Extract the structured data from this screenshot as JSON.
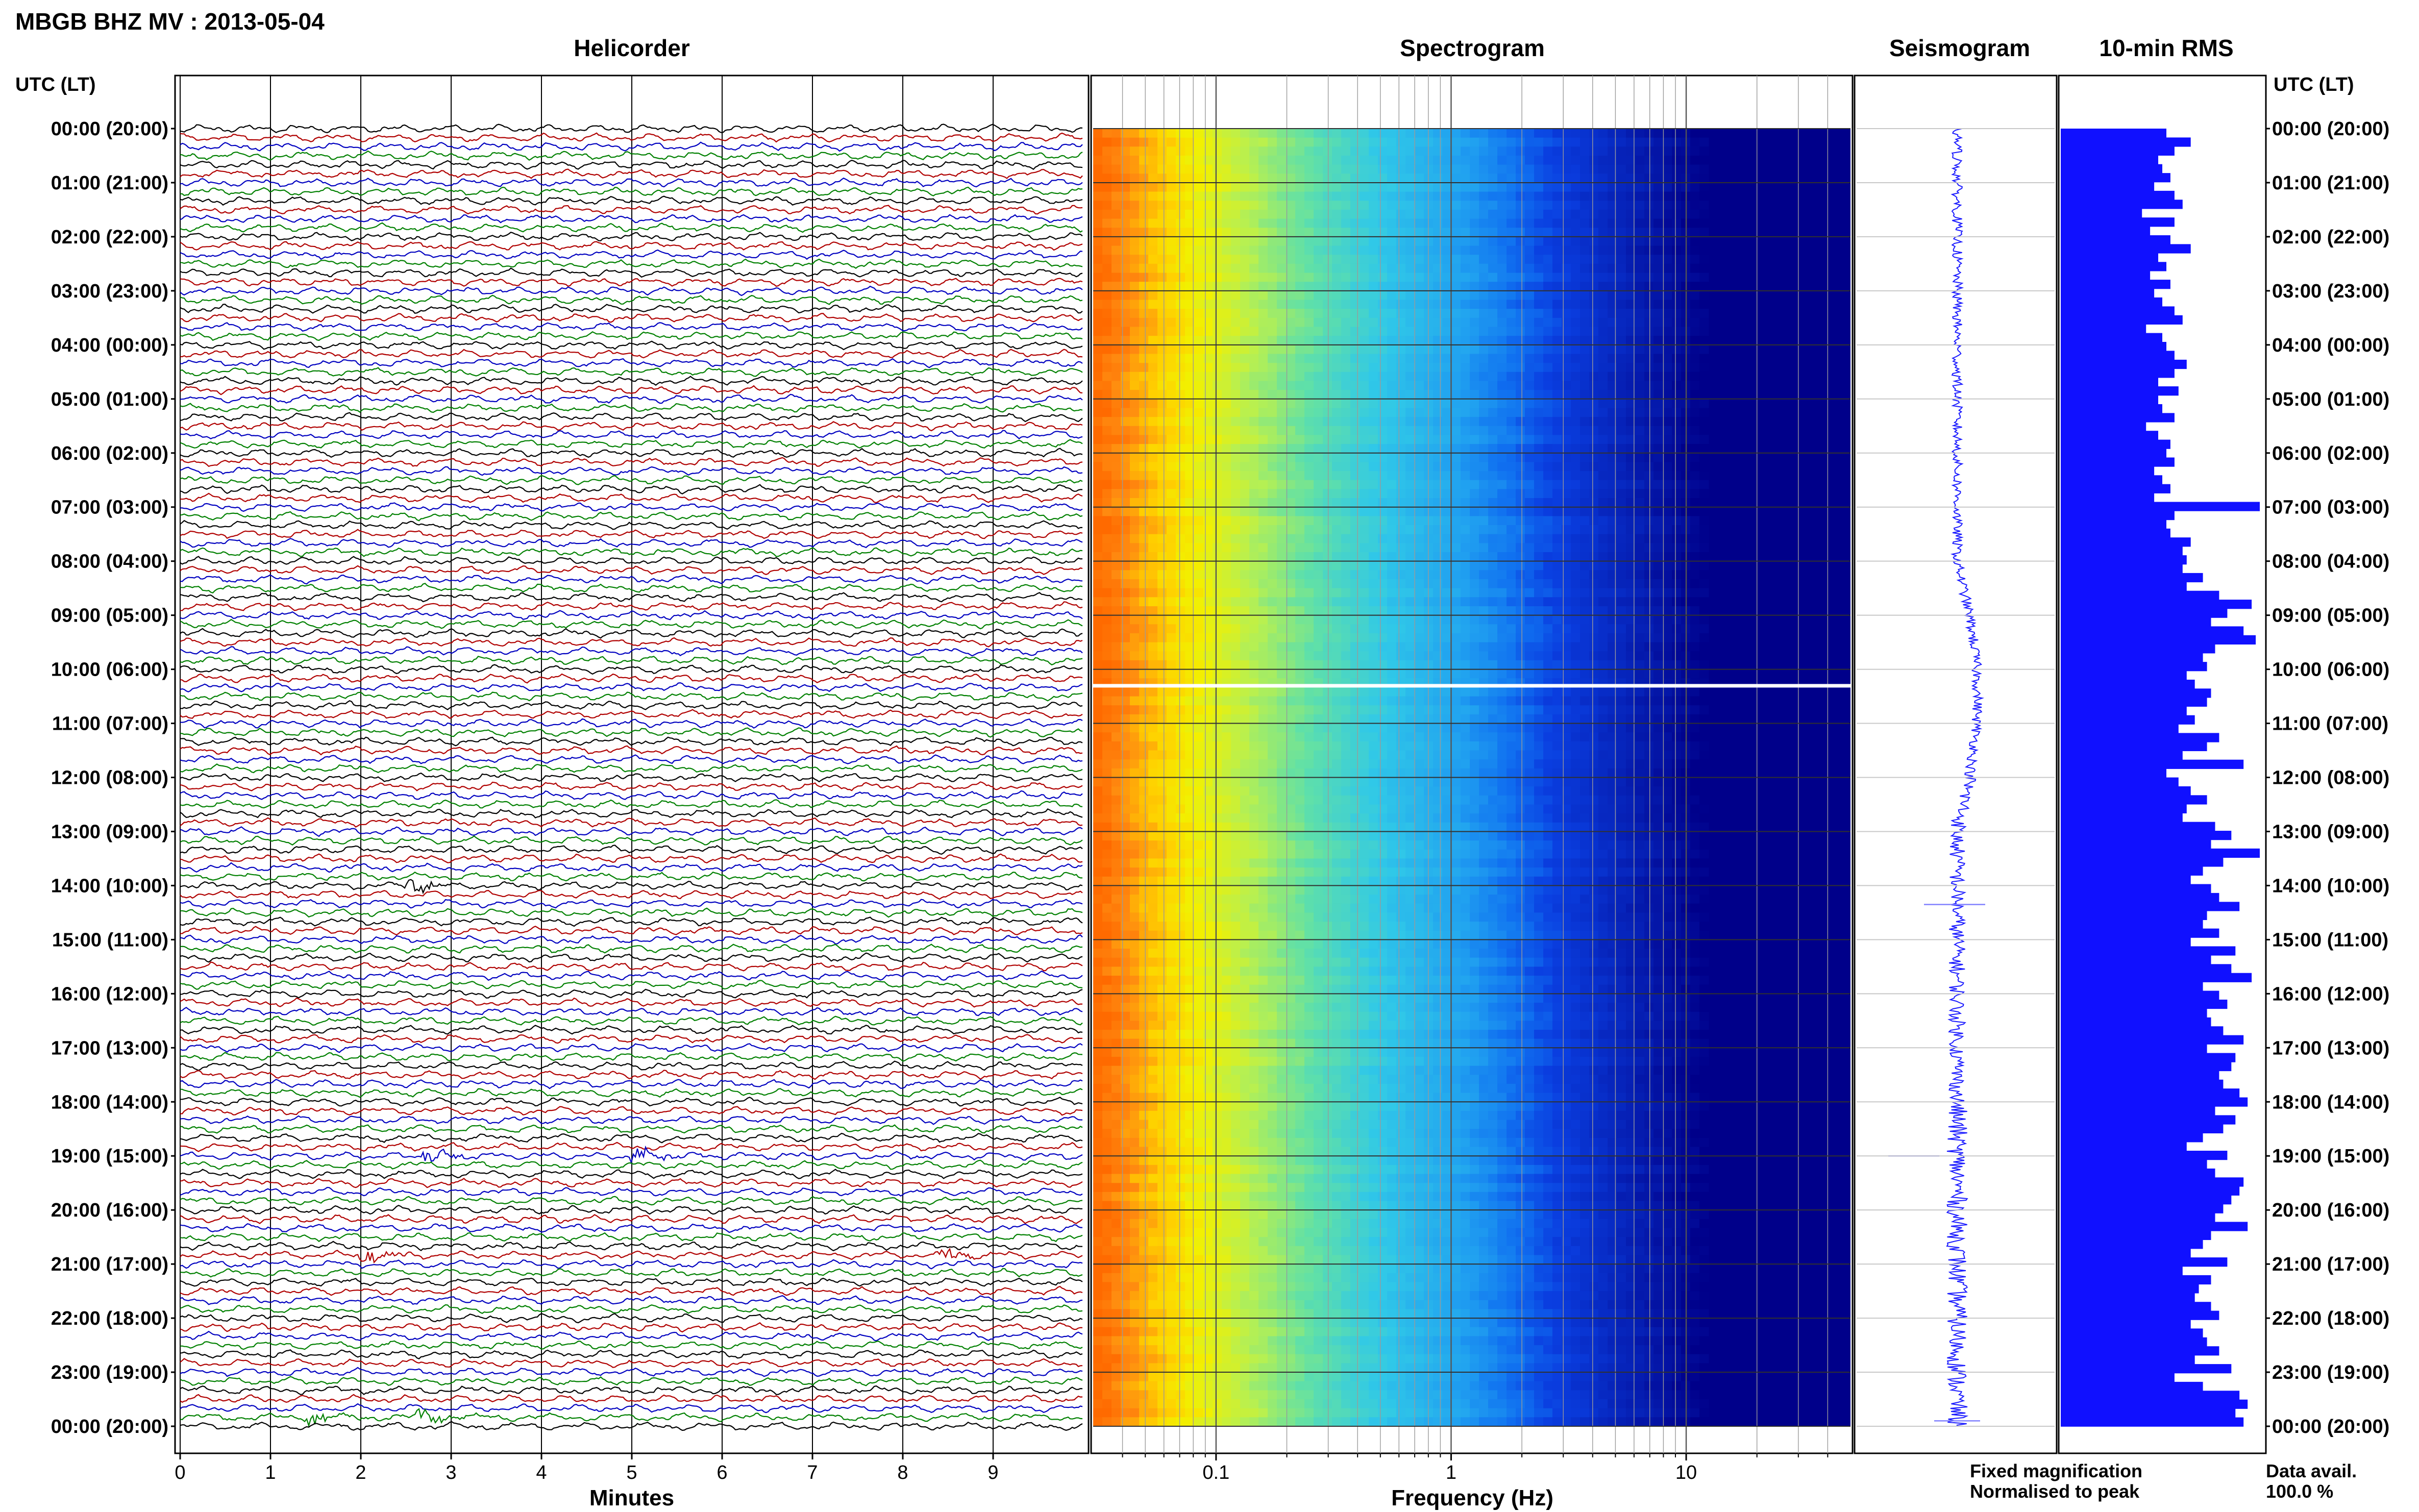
{
  "header": {
    "station_title": "MBGB BHZ MV : 2013-05-04",
    "utc_lt_label": "UTC (LT)"
  },
  "panels": {
    "helicorder_title": "Helicorder",
    "spectrogram_title": "Spectrogram",
    "seismogram_title": "Seismogram",
    "rms_title": "10-min RMS"
  },
  "axes": {
    "helicorder_xlabel": "Minutes",
    "spectrogram_xlabel": "Frequency (Hz)"
  },
  "legend": {
    "fixed_magnification": "Fixed magnification",
    "fixed_magnification_color": "#1f1fff",
    "normalised_to_peak": "Normalised to peak",
    "normalised_to_peak_color": "#ff1f1f",
    "data_avail_label": "Data avail.",
    "data_avail_value": "100.0 %"
  },
  "colors": {
    "trace_cycle": [
      "#000000",
      "#b00000",
      "#0000c0",
      "#008000"
    ],
    "rms_bar": "#1010ff",
    "seismogram": "#1a1aff"
  },
  "chart_data": [
    {
      "type": "line",
      "name": "helicorder",
      "x_unit": "minutes",
      "xlim": [
        0,
        10
      ],
      "x_ticks": [
        "0",
        "1",
        "2",
        "3",
        "4",
        "5",
        "6",
        "7",
        "8",
        "9"
      ],
      "time_labels": [
        "00:00 (20:00)",
        "01:00 (21:00)",
        "02:00 (22:00)",
        "03:00 (23:00)",
        "04:00 (00:00)",
        "05:00 (01:00)",
        "06:00 (02:00)",
        "07:00 (03:00)",
        "08:00 (04:00)",
        "09:00 (05:00)",
        "10:00 (06:00)",
        "11:00 (07:00)",
        "12:00 (08:00)",
        "13:00 (09:00)",
        "14:00 (10:00)",
        "15:00 (11:00)",
        "16:00 (12:00)",
        "17:00 (13:00)",
        "18:00 (14:00)",
        "19:00 (15:00)",
        "20:00 (16:00)",
        "21:00 (17:00)",
        "22:00 (18:00)",
        "23:00 (19:00)",
        "00:00 (20:00)"
      ],
      "events": [
        {
          "row": 143,
          "minute": 2.7
        },
        {
          "row": 114,
          "minute": 2.8
        },
        {
          "row": 114,
          "minute": 5.1
        },
        {
          "row": 125,
          "minute": 2.1
        },
        {
          "row": 125,
          "minute": 8.5
        },
        {
          "row": 143,
          "minute": 1.5
        },
        {
          "row": 84,
          "minute": 2.6
        }
      ]
    },
    {
      "type": "heatmap",
      "name": "spectrogram",
      "x_scale": "log",
      "xlim": [
        0.03,
        50
      ],
      "x_ticks": [
        "0.1",
        "1",
        "10"
      ],
      "x_tick_values": [
        0.1,
        1,
        10
      ],
      "gap_hour": 10.3
    },
    {
      "type": "line",
      "name": "seismogram"
    },
    {
      "type": "bar",
      "name": "10-min RMS",
      "orientation": "horizontal",
      "interval_minutes": 10,
      "xlim": [
        0,
        1
      ],
      "values": [
        0.52,
        0.64,
        0.56,
        0.48,
        0.5,
        0.54,
        0.46,
        0.56,
        0.6,
        0.4,
        0.56,
        0.44,
        0.54,
        0.64,
        0.48,
        0.52,
        0.44,
        0.54,
        0.46,
        0.5,
        0.56,
        0.6,
        0.42,
        0.5,
        0.52,
        0.56,
        0.62,
        0.56,
        0.48,
        0.58,
        0.48,
        0.5,
        0.56,
        0.42,
        0.48,
        0.54,
        0.52,
        0.56,
        0.46,
        0.5,
        0.54,
        0.46,
        0.98,
        0.56,
        0.52,
        0.54,
        0.64,
        0.6,
        0.62,
        0.6,
        0.7,
        0.62,
        0.78,
        0.94,
        0.82,
        0.74,
        0.9,
        0.96,
        0.76,
        0.7,
        0.72,
        0.62,
        0.66,
        0.74,
        0.72,
        0.62,
        0.66,
        0.58,
        0.78,
        0.72,
        0.6,
        0.9,
        0.52,
        0.58,
        0.64,
        0.72,
        0.62,
        0.6,
        0.76,
        0.84,
        0.74,
        0.98,
        0.8,
        0.7,
        0.64,
        0.74,
        0.78,
        0.88,
        0.72,
        0.7,
        0.78,
        0.64,
        0.86,
        0.74,
        0.84,
        0.94,
        0.7,
        0.78,
        0.82,
        0.72,
        0.74,
        0.8,
        0.9,
        0.72,
        0.86,
        0.84,
        0.78,
        0.8,
        0.88,
        0.92,
        0.76,
        0.86,
        0.8,
        0.7,
        0.62,
        0.82,
        0.72,
        0.76,
        0.9,
        0.88,
        0.84,
        0.8,
        0.76,
        0.92,
        0.74,
        0.7,
        0.64,
        0.82,
        0.6,
        0.74,
        0.68,
        0.66,
        0.74,
        0.78,
        0.64,
        0.7,
        0.72,
        0.78,
        0.66,
        0.84,
        0.56,
        0.7,
        0.88,
        0.92,
        0.86,
        0.9
      ]
    }
  ]
}
